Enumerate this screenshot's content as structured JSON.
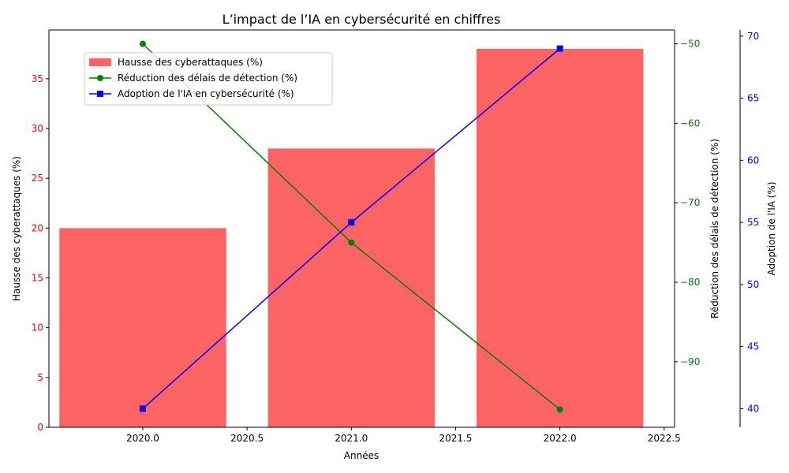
{
  "chart_data": {
    "type": "bar+line",
    "title": "L’impact de l’IA en cybersécurité en chiffres",
    "xlabel": "Années",
    "x": [
      2020,
      2021,
      2022
    ],
    "xlim": [
      2019.55,
      2022.55
    ],
    "xticks": [
      2019.5,
      2020.0,
      2020.5,
      2021.0,
      2021.5,
      2022.0,
      2022.5
    ],
    "xtick_labels": [
      "2019.5",
      "2020.0",
      "2020.5",
      "2021.0",
      "2021.5",
      "2022.0",
      "2022.5"
    ],
    "bar_width": 0.8,
    "grid": false,
    "legend_placement": "upper-left",
    "axes": {
      "left": {
        "label": "Hausse des cyberattaques (%)",
        "color": "#ff0000",
        "ylim": [
          0,
          39.9
        ],
        "ticks": [
          0,
          5,
          10,
          15,
          20,
          25,
          30,
          35
        ]
      },
      "right1": {
        "label": "Réduction des délais de détection (%)",
        "color": "#008000",
        "ylim": [
          -98.25,
          -48.25
        ],
        "ticks": [
          -90,
          -80,
          -70,
          -60,
          -50
        ]
      },
      "right2": {
        "label": "Adoption de l'IA (%)",
        "color": "#0000ff",
        "ylim": [
          38.5,
          70.5
        ],
        "ticks": [
          40,
          45,
          50,
          55,
          60,
          65,
          70
        ]
      }
    },
    "series": [
      {
        "name": "Hausse des cyberattaques (%)",
        "type": "bar",
        "axis": "left",
        "color": "#ff6464",
        "values": [
          20,
          28,
          38
        ]
      },
      {
        "name": "Réduction des délais de détection (%)",
        "type": "line",
        "axis": "right1",
        "color": "#008000",
        "marker": "circle",
        "values": [
          -50,
          -75,
          -96
        ]
      },
      {
        "name": "Adoption de l'IA (%)",
        "legend_label": "Adoption de l'IA en cybersécurité (%)",
        "type": "line",
        "axis": "right2",
        "color": "#0000ff",
        "marker": "square",
        "values": [
          40,
          55,
          69
        ]
      }
    ]
  }
}
